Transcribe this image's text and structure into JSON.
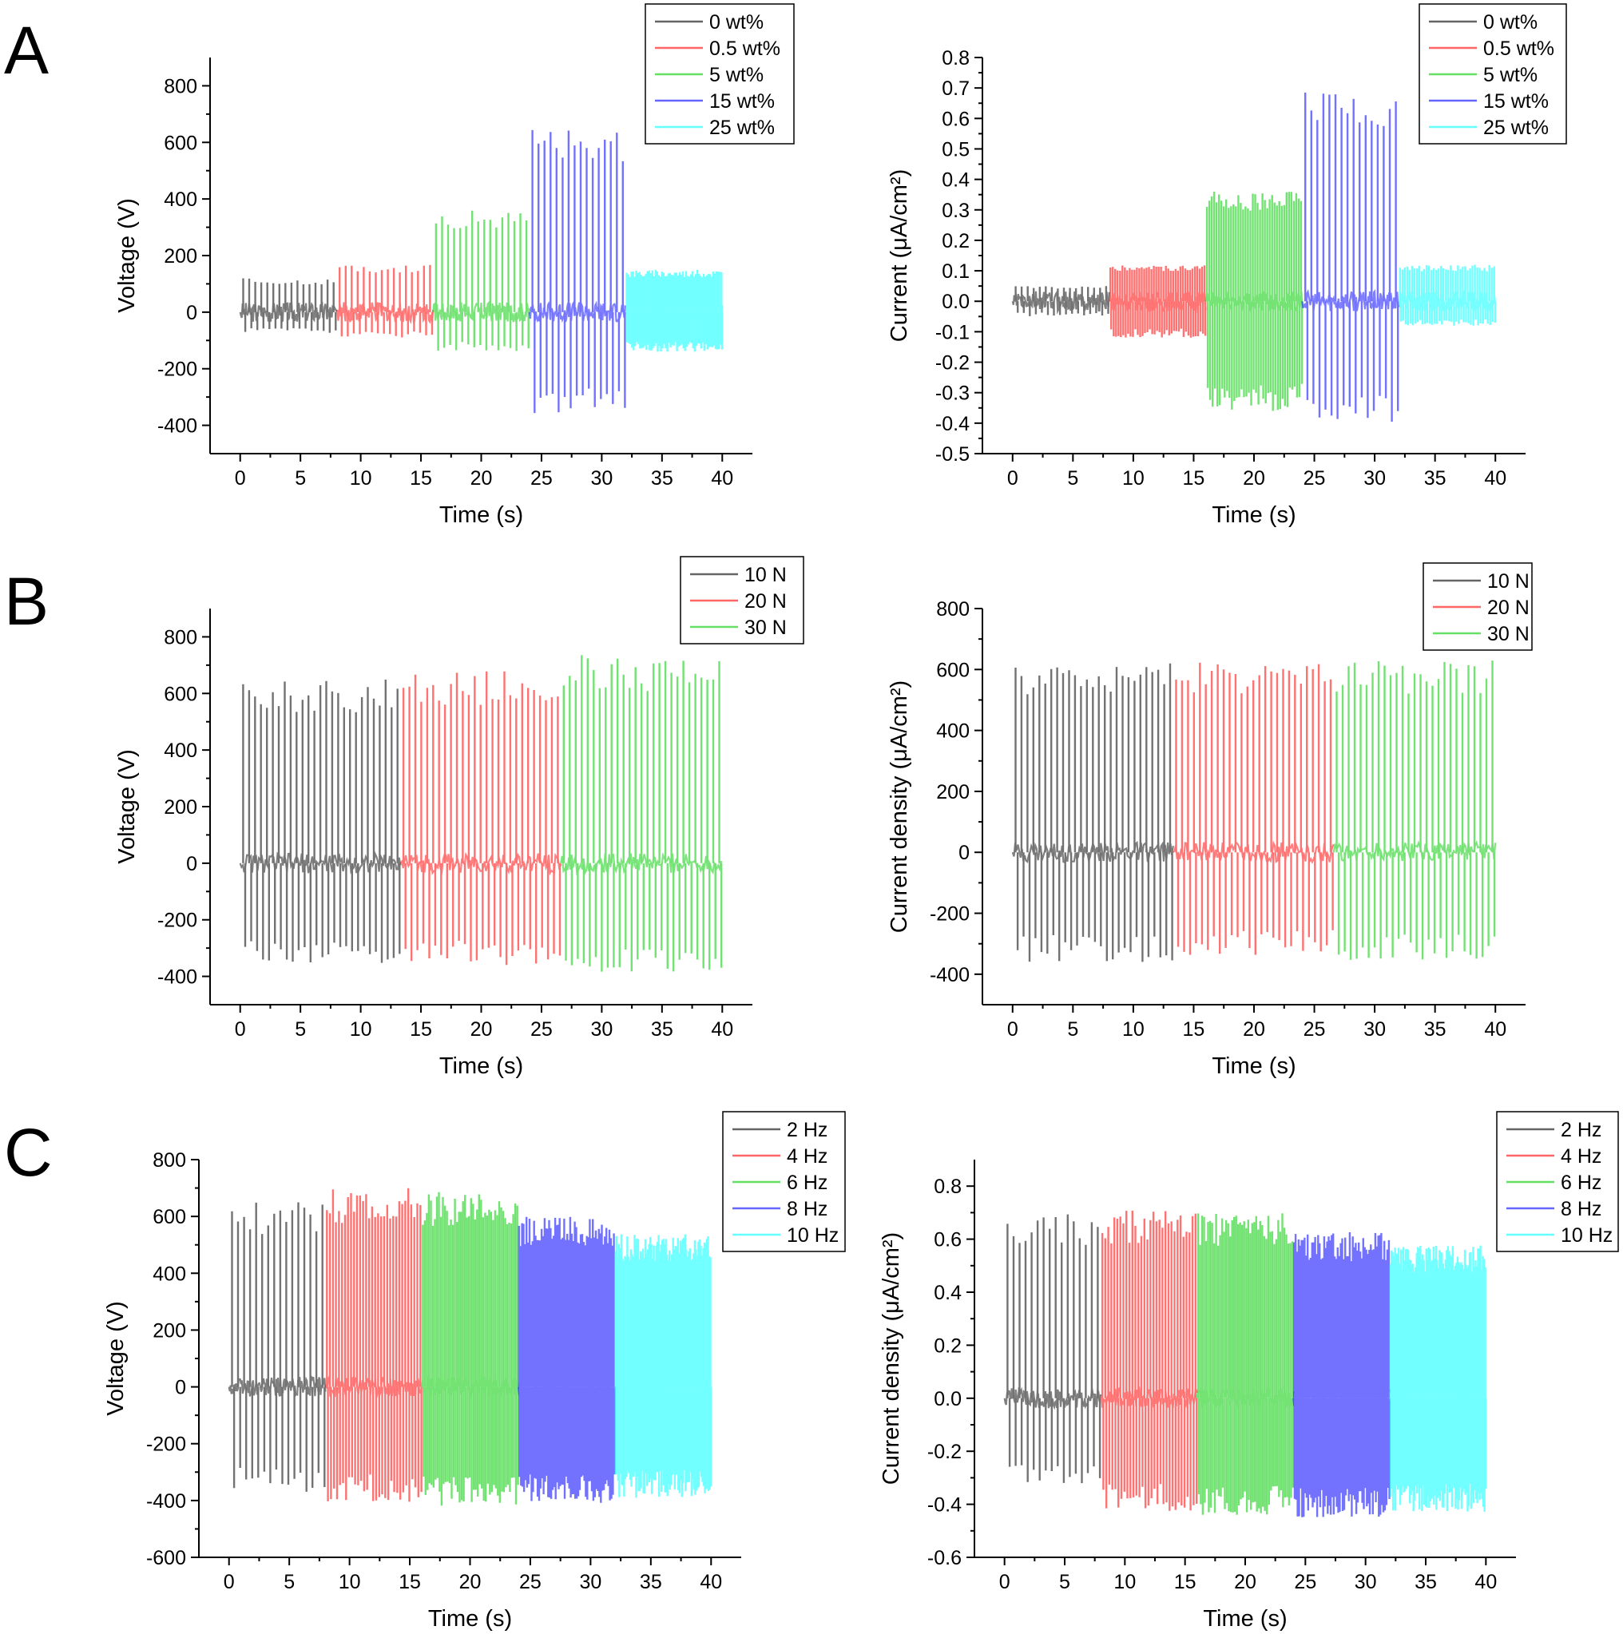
{
  "panels": [
    "A",
    "B",
    "C"
  ],
  "chart_data": [
    {
      "type": "line",
      "panel": "A",
      "xlabel": "Time (s)",
      "ylabel": "Voltage (V)",
      "xlim": [
        -2.5,
        42.5
      ],
      "ylim": [
        -500,
        900
      ],
      "xticks": [
        0,
        5,
        10,
        15,
        20,
        25,
        30,
        35,
        40
      ],
      "yticks": [
        -400,
        -200,
        0,
        200,
        400,
        600,
        800
      ],
      "grid": false,
      "legend_position": "top-right",
      "series": [
        {
          "name": "0 wt%",
          "color": "#000000",
          "t_range": [
            0,
            8
          ],
          "peak_max": 120,
          "peak_min": -75,
          "pulses": 16
        },
        {
          "name": "0.5 wt%",
          "color": "#ff0000",
          "t_range": [
            8,
            16
          ],
          "peak_max": 170,
          "peak_min": -90,
          "pulses": 16
        },
        {
          "name": "5 wt%",
          "color": "#00cc00",
          "t_range": [
            16,
            24
          ],
          "peak_max": 360,
          "peak_min": -140,
          "pulses": 16
        },
        {
          "name": "15 wt%",
          "color": "#0000ff",
          "t_range": [
            24,
            32
          ],
          "peak_max": 650,
          "peak_min": -360,
          "pulses": 16
        },
        {
          "name": "25 wt%",
          "color": "#00ffff",
          "t_range": [
            32,
            40
          ],
          "peak_max": 150,
          "peak_min": -140,
          "pulses": 60
        }
      ]
    },
    {
      "type": "line",
      "panel": "A",
      "xlabel": "Time (s)",
      "ylabel": "Current (μA/cm²)",
      "xlim": [
        -2.5,
        42.5
      ],
      "ylim": [
        -0.5,
        0.8
      ],
      "xticks": [
        0,
        5,
        10,
        15,
        20,
        25,
        30,
        35,
        40
      ],
      "yticks": [
        -0.5,
        -0.4,
        -0.3,
        -0.2,
        -0.1,
        0.0,
        0.1,
        0.2,
        0.3,
        0.4,
        0.5,
        0.6,
        0.7,
        0.8
      ],
      "grid": false,
      "legend_position": "top-right",
      "series": [
        {
          "name": "0 wt%",
          "color": "#000000",
          "t_range": [
            0,
            8
          ],
          "peak_max": 0.05,
          "peak_min": -0.05,
          "pulses": 16
        },
        {
          "name": "0.5 wt%",
          "color": "#ff0000",
          "t_range": [
            8,
            16
          ],
          "peak_max": 0.12,
          "peak_min": -0.12,
          "pulses": 40
        },
        {
          "name": "5 wt%",
          "color": "#00cc00",
          "t_range": [
            16,
            24
          ],
          "peak_max": 0.36,
          "peak_min": -0.36,
          "pulses": 40
        },
        {
          "name": "15 wt%",
          "color": "#0000ff",
          "t_range": [
            24,
            32
          ],
          "peak_max": 0.7,
          "peak_min": -0.4,
          "pulses": 16
        },
        {
          "name": "25 wt%",
          "color": "#00ffff",
          "t_range": [
            32,
            40
          ],
          "peak_max": 0.12,
          "peak_min": -0.08,
          "pulses": 40
        }
      ]
    },
    {
      "type": "line",
      "panel": "B",
      "xlabel": "Time (s)",
      "ylabel": "Voltage (V)",
      "xlim": [
        -2.5,
        42.5
      ],
      "ylim": [
        -500,
        900
      ],
      "xticks": [
        0,
        5,
        10,
        15,
        20,
        25,
        30,
        35,
        40
      ],
      "yticks": [
        -400,
        -200,
        0,
        200,
        400,
        600,
        800
      ],
      "grid": false,
      "legend_position": "top-right",
      "series": [
        {
          "name": "10 N",
          "color": "#000000",
          "t_range": [
            0,
            13.3
          ],
          "peak_max": 650,
          "peak_min": -360,
          "pulses": 27
        },
        {
          "name": "20 N",
          "color": "#ff0000",
          "t_range": [
            13.3,
            26.6
          ],
          "peak_max": 680,
          "peak_min": -360,
          "pulses": 27
        },
        {
          "name": "30 N",
          "color": "#00cc00",
          "t_range": [
            26.6,
            40
          ],
          "peak_max": 740,
          "peak_min": -400,
          "pulses": 27
        }
      ]
    },
    {
      "type": "line",
      "panel": "B",
      "xlabel": "Time (s)",
      "ylabel": "Current density (μA/cm²)",
      "xlim": [
        -2.5,
        42.5
      ],
      "ylim": [
        -500,
        800
      ],
      "xticks": [
        0,
        5,
        10,
        15,
        20,
        25,
        30,
        35,
        40
      ],
      "yticks": [
        -400,
        -200,
        0,
        200,
        400,
        600,
        800
      ],
      "grid": false,
      "legend_position": "top-right",
      "series": [
        {
          "name": "10 N",
          "color": "#000000",
          "t_range": [
            0,
            13.3
          ],
          "peak_max": 630,
          "peak_min": -360,
          "pulses": 27
        },
        {
          "name": "20 N",
          "color": "#ff0000",
          "t_range": [
            13.3,
            26.6
          ],
          "peak_max": 630,
          "peak_min": -340,
          "pulses": 27
        },
        {
          "name": "30 N",
          "color": "#00cc00",
          "t_range": [
            26.6,
            40
          ],
          "peak_max": 630,
          "peak_min": -360,
          "pulses": 27
        }
      ]
    },
    {
      "type": "line",
      "panel": "C",
      "xlabel": "Time (s)",
      "ylabel": "Voltage (V)",
      "xlim": [
        -2.5,
        42.5
      ],
      "ylim": [
        -600,
        800
      ],
      "xticks": [
        0,
        5,
        10,
        15,
        20,
        25,
        30,
        35,
        40
      ],
      "yticks": [
        -600,
        -400,
        -200,
        0,
        200,
        400,
        600,
        800
      ],
      "grid": false,
      "legend_position": "top-right",
      "series": [
        {
          "name": "2 Hz",
          "color": "#000000",
          "t_range": [
            0,
            8
          ],
          "peak_max": 650,
          "peak_min": -370,
          "pulses": 16
        },
        {
          "name": "4 Hz",
          "color": "#ff0000",
          "t_range": [
            8,
            16
          ],
          "peak_max": 700,
          "peak_min": -410,
          "pulses": 32
        },
        {
          "name": "6 Hz",
          "color": "#00cc00",
          "t_range": [
            16,
            24
          ],
          "peak_max": 690,
          "peak_min": -420,
          "pulses": 48
        },
        {
          "name": "8 Hz",
          "color": "#0000ff",
          "t_range": [
            24,
            32
          ],
          "peak_max": 600,
          "peak_min": -410,
          "pulses": 64
        },
        {
          "name": "10 Hz",
          "color": "#00ffff",
          "t_range": [
            32,
            40
          ],
          "peak_max": 540,
          "peak_min": -390,
          "pulses": 80
        }
      ]
    },
    {
      "type": "line",
      "panel": "C",
      "xlabel": "Time (s)",
      "ylabel": "Current density (μA/cm²)",
      "xlim": [
        -2.5,
        42.5
      ],
      "ylim": [
        -0.6,
        0.9
      ],
      "xticks": [
        0,
        5,
        10,
        15,
        20,
        25,
        30,
        35,
        40
      ],
      "yticks": [
        -0.6,
        -0.4,
        -0.2,
        0.0,
        0.2,
        0.4,
        0.6,
        0.8
      ],
      "grid": false,
      "legend_position": "top-right",
      "series": [
        {
          "name": "2 Hz",
          "color": "#000000",
          "t_range": [
            0,
            8
          ],
          "peak_max": 0.7,
          "peak_min": -0.33,
          "pulses": 16
        },
        {
          "name": "4 Hz",
          "color": "#ff0000",
          "t_range": [
            8,
            16
          ],
          "peak_max": 0.71,
          "peak_min": -0.43,
          "pulses": 32
        },
        {
          "name": "6 Hz",
          "color": "#00cc00",
          "t_range": [
            16,
            24
          ],
          "peak_max": 0.7,
          "peak_min": -0.44,
          "pulses": 48
        },
        {
          "name": "8 Hz",
          "color": "#0000ff",
          "t_range": [
            24,
            32
          ],
          "peak_max": 0.63,
          "peak_min": -0.45,
          "pulses": 64
        },
        {
          "name": "10 Hz",
          "color": "#00ffff",
          "t_range": [
            32,
            40
          ],
          "peak_max": 0.58,
          "peak_min": -0.43,
          "pulses": 80
        }
      ]
    }
  ]
}
